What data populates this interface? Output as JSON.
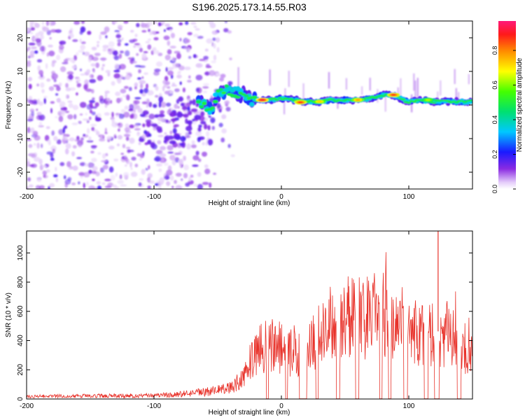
{
  "figure": {
    "title": "S196.2025.173.14.55.R03"
  },
  "chart_data": [
    {
      "type": "heatmap",
      "title": "S196.2025.173.14.55.R03",
      "xlabel": "Height of straight line (km)",
      "ylabel": "Frequency (Hz)",
      "xlim": [
        -200,
        150
      ],
      "ylim": [
        -25,
        25
      ],
      "xticks": [
        -200,
        -100,
        0,
        100
      ],
      "xtick_labels": [
        "-200",
        "-100",
        "0",
        "100"
      ],
      "yticks": [
        -20,
        -10,
        0,
        10,
        20
      ],
      "ytick_labels": [
        "-20",
        "-10",
        "0",
        "10",
        "20"
      ],
      "grid": false,
      "colorbar": {
        "label": "Normalized spectral amplitude",
        "range": [
          0,
          0.97
        ],
        "ticks": [
          0,
          0.2,
          0.4,
          0.6,
          0.8
        ],
        "tick_labels": [
          "0.0",
          "0.2",
          "0.4",
          "0.6",
          "0.8"
        ],
        "colormap": "rainbow-with-fading-low-end"
      },
      "noise_region": {
        "x_range": [
          -200,
          -60
        ],
        "amplitude_max": 0.15,
        "color": "#7a22e6"
      },
      "carrier_band": {
        "center_frequency_hz": [
          {
            "x": -65,
            "y": 0.5
          },
          {
            "x": -60,
            "y": 0.0
          },
          {
            "x": -55,
            "y": -1.5
          },
          {
            "x": -50,
            "y": 3.5
          },
          {
            "x": -45,
            "y": 4.0
          },
          {
            "x": -40,
            "y": 4.5
          },
          {
            "x": -35,
            "y": 3.5
          },
          {
            "x": -30,
            "y": 3.0
          },
          {
            "x": -25,
            "y": 1.5
          },
          {
            "x": -20,
            "y": 1.5
          },
          {
            "x": -10,
            "y": 1.5
          },
          {
            "x": 0,
            "y": 2.0
          },
          {
            "x": 10,
            "y": 1.5
          },
          {
            "x": 20,
            "y": 1.0
          },
          {
            "x": 30,
            "y": 1.0
          },
          {
            "x": 40,
            "y": 1.5
          },
          {
            "x": 50,
            "y": 1.5
          },
          {
            "x": 60,
            "y": 1.5
          },
          {
            "x": 70,
            "y": 2.0
          },
          {
            "x": 75,
            "y": 2.5
          },
          {
            "x": 80,
            "y": 3.0
          },
          {
            "x": 88,
            "y": 3.0
          },
          {
            "x": 95,
            "y": 1.5
          },
          {
            "x": 100,
            "y": 1.0
          },
          {
            "x": 110,
            "y": 1.5
          },
          {
            "x": 120,
            "y": 1.0
          },
          {
            "x": 130,
            "y": 1.0
          },
          {
            "x": 140,
            "y": 1.0
          },
          {
            "x": 150,
            "y": 1.0
          }
        ],
        "hot_spots": [
          {
            "x": -15,
            "y": 1.5,
            "amplitude": 0.95
          },
          {
            "x": 15,
            "y": 0.8,
            "amplitude": 0.9
          },
          {
            "x": 30,
            "y": 1.0,
            "amplitude": 0.75
          },
          {
            "x": 60,
            "y": 1.5,
            "amplitude": 0.8
          },
          {
            "x": 88,
            "y": 3.0,
            "amplitude": 0.9
          },
          {
            "x": 115,
            "y": 1.5,
            "amplitude": 0.65
          }
        ]
      }
    },
    {
      "type": "line",
      "xlabel": "Height of straight line (km)",
      "ylabel": "SNR (10 * v/v)",
      "xlim": [
        -200,
        150
      ],
      "ylim": [
        0,
        1150
      ],
      "xticks": [
        -200,
        -100,
        0,
        100
      ],
      "xtick_labels": [
        "-200",
        "-100",
        "0",
        "100"
      ],
      "yticks": [
        0,
        200,
        400,
        600,
        800,
        1000
      ],
      "ytick_labels": [
        "0",
        "200",
        "400",
        "600",
        "800",
        "1000"
      ],
      "grid": false,
      "series": [
        {
          "color": "#e8322a",
          "envelope": [
            {
              "x": -200,
              "y": 20
            },
            {
              "x": -150,
              "y": 22
            },
            {
              "x": -100,
              "y": 25
            },
            {
              "x": -80,
              "y": 35
            },
            {
              "x": -60,
              "y": 50
            },
            {
              "x": -40,
              "y": 80
            },
            {
              "x": -30,
              "y": 150
            },
            {
              "x": -25,
              "y": 250
            },
            {
              "x": -20,
              "y": 330
            },
            {
              "x": -15,
              "y": 360
            },
            {
              "x": -10,
              "y": 380
            },
            {
              "x": 0,
              "y": 380
            },
            {
              "x": 10,
              "y": 320
            },
            {
              "x": 20,
              "y": 360
            },
            {
              "x": 25,
              "y": 420
            },
            {
              "x": 30,
              "y": 470
            },
            {
              "x": 40,
              "y": 550
            },
            {
              "x": 50,
              "y": 580
            },
            {
              "x": 60,
              "y": 590
            },
            {
              "x": 70,
              "y": 580
            },
            {
              "x": 80,
              "y": 620
            },
            {
              "x": 90,
              "y": 560
            },
            {
              "x": 100,
              "y": 520
            },
            {
              "x": 110,
              "y": 480
            },
            {
              "x": 120,
              "y": 460
            },
            {
              "x": 130,
              "y": 470
            },
            {
              "x": 140,
              "y": 400
            },
            {
              "x": 150,
              "y": 300
            }
          ],
          "spikes": [
            {
              "x": 123,
              "y": 1150
            }
          ],
          "dropouts": [
            [
              -12,
              -10
            ],
            [
              3,
              5
            ],
            [
              14,
              20
            ],
            [
              27,
              29
            ],
            [
              43,
              46
            ],
            [
              58,
              61
            ],
            [
              77,
              79
            ],
            [
              84,
              86
            ],
            [
              96,
              99
            ],
            [
              112,
              115
            ],
            [
              120,
              124
            ],
            [
              138,
              141
            ]
          ]
        }
      ]
    }
  ]
}
